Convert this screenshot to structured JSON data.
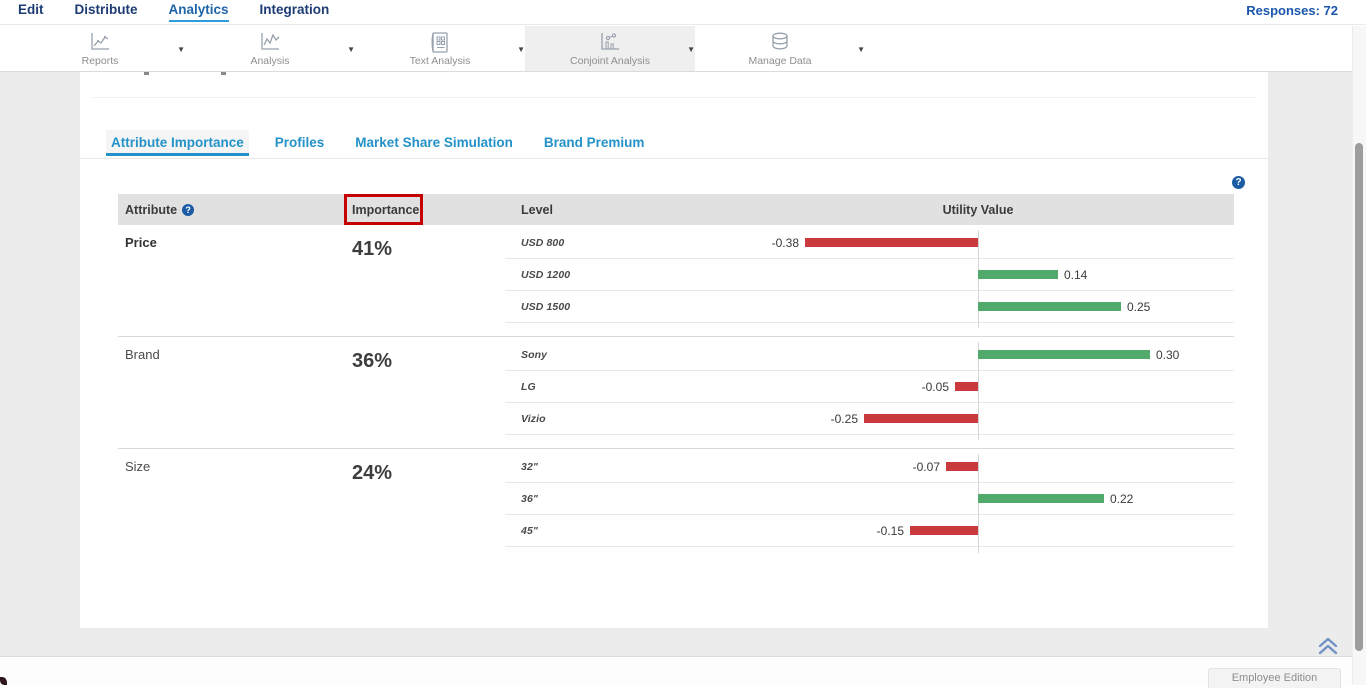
{
  "top_nav": {
    "items": [
      {
        "label": "Edit",
        "active": false
      },
      {
        "label": "Distribute",
        "active": false
      },
      {
        "label": "Analytics",
        "active": true
      },
      {
        "label": "Integration",
        "active": false
      }
    ],
    "responses_label": "Responses: 72"
  },
  "ribbon": {
    "tools": [
      {
        "label": "Reports",
        "icon": "line-chart-icon",
        "active": false
      },
      {
        "label": "Analysis",
        "icon": "trend-chart-icon",
        "active": false
      },
      {
        "label": "Text Analysis",
        "icon": "document-grid-icon",
        "active": false
      },
      {
        "label": "Conjoint Analysis",
        "icon": "scatter-chart-icon",
        "active": true
      },
      {
        "label": "Manage Data",
        "icon": "database-icon",
        "active": false
      }
    ]
  },
  "tabs": [
    {
      "label": "Attribute Importance",
      "active": true
    },
    {
      "label": "Profiles",
      "active": false
    },
    {
      "label": "Market Share Simulation",
      "active": false
    },
    {
      "label": "Brand Premium",
      "active": false
    }
  ],
  "table": {
    "headers": {
      "attribute": "Attribute",
      "importance": "Importance",
      "level": "Level",
      "utility": "Utility Value"
    },
    "highlighted_header": "Importance"
  },
  "chart_data": {
    "type": "bar",
    "orientation": "horizontal",
    "zero_axis": true,
    "attributes": [
      {
        "name": "Price",
        "importance": "41%",
        "levels": [
          {
            "name": "USD 800",
            "utility": -0.38,
            "label": "-0.38"
          },
          {
            "name": "USD 1200",
            "utility": 0.14,
            "label": "0.14"
          },
          {
            "name": "USD 1500",
            "utility": 0.25,
            "label": "0.25"
          }
        ]
      },
      {
        "name": "Brand",
        "importance": "36%",
        "levels": [
          {
            "name": "Sony",
            "utility": 0.3,
            "label": "0.30"
          },
          {
            "name": "LG",
            "utility": -0.05,
            "label": "-0.05"
          },
          {
            "name": "Vizio",
            "utility": -0.25,
            "label": "-0.25"
          }
        ]
      },
      {
        "name": "Size",
        "importance": "24%",
        "levels": [
          {
            "name": "32\"",
            "utility": -0.07,
            "label": "-0.07"
          },
          {
            "name": "36\"",
            "utility": 0.22,
            "label": "0.22"
          },
          {
            "name": "45\"",
            "utility": -0.15,
            "label": "-0.15"
          }
        ]
      }
    ]
  },
  "colors": {
    "positive_bar": "#4faa6c",
    "negative_bar": "#c9393e",
    "accent_blue": "#2492c8",
    "highlight_box": "#c40000",
    "help_icon_bg": "#1b5ca5"
  },
  "icons": {
    "help": "?",
    "dropdown_caret": "▼"
  },
  "footer": {
    "edition_label": "Employee Edition"
  }
}
